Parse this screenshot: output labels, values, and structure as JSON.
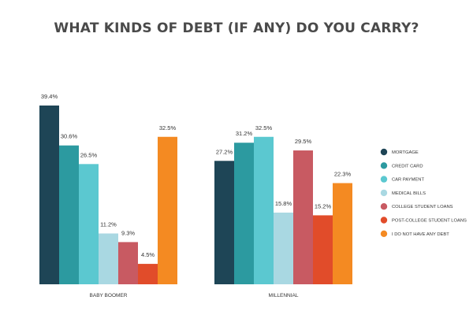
{
  "chart_data": {
    "type": "bar",
    "title": "WHAT KINDS OF DEBT (IF ANY) DO YOU CARRY?",
    "xlabel": "",
    "ylabel": "",
    "ylim": [
      0,
      40
    ],
    "grid": false,
    "legend_position": "right",
    "categories": [
      "BABY BOOMER",
      "MILLENNIAL"
    ],
    "series": [
      {
        "name": "MORTGAGE",
        "color": "#1e4556",
        "values": [
          39.4,
          27.2
        ],
        "labels": [
          "39.4%",
          "27.2%"
        ]
      },
      {
        "name": "CREDIT CARD",
        "color": "#2c9aa0",
        "values": [
          30.6,
          31.2
        ],
        "labels": [
          "30.6%",
          "31.2%"
        ]
      },
      {
        "name": "CAR PAYMENT",
        "color": "#5bc8d0",
        "values": [
          26.5,
          32.5
        ],
        "labels": [
          "26.5%",
          "32.5%"
        ]
      },
      {
        "name": "MEDICAL BILLS",
        "color": "#a9d8e2",
        "values": [
          11.2,
          15.8
        ],
        "labels": [
          "11.2%",
          "15.8%"
        ]
      },
      {
        "name": "COLLEGE STUDENT LOANS",
        "color": "#c85a62",
        "values": [
          9.3,
          29.5
        ],
        "labels": [
          "9.3%",
          "29.5%"
        ]
      },
      {
        "name": "POST-COLLEGE STUDENT LOANS",
        "color": "#e14c2a",
        "values": [
          4.5,
          15.2
        ],
        "labels": [
          "4.5%",
          "15.2%"
        ]
      },
      {
        "name": "I DO NOT HAVE ANY DEBT",
        "color": "#f48a22",
        "values": [
          32.5,
          22.3
        ],
        "labels": [
          "32.5%",
          "22.3%"
        ]
      }
    ]
  }
}
